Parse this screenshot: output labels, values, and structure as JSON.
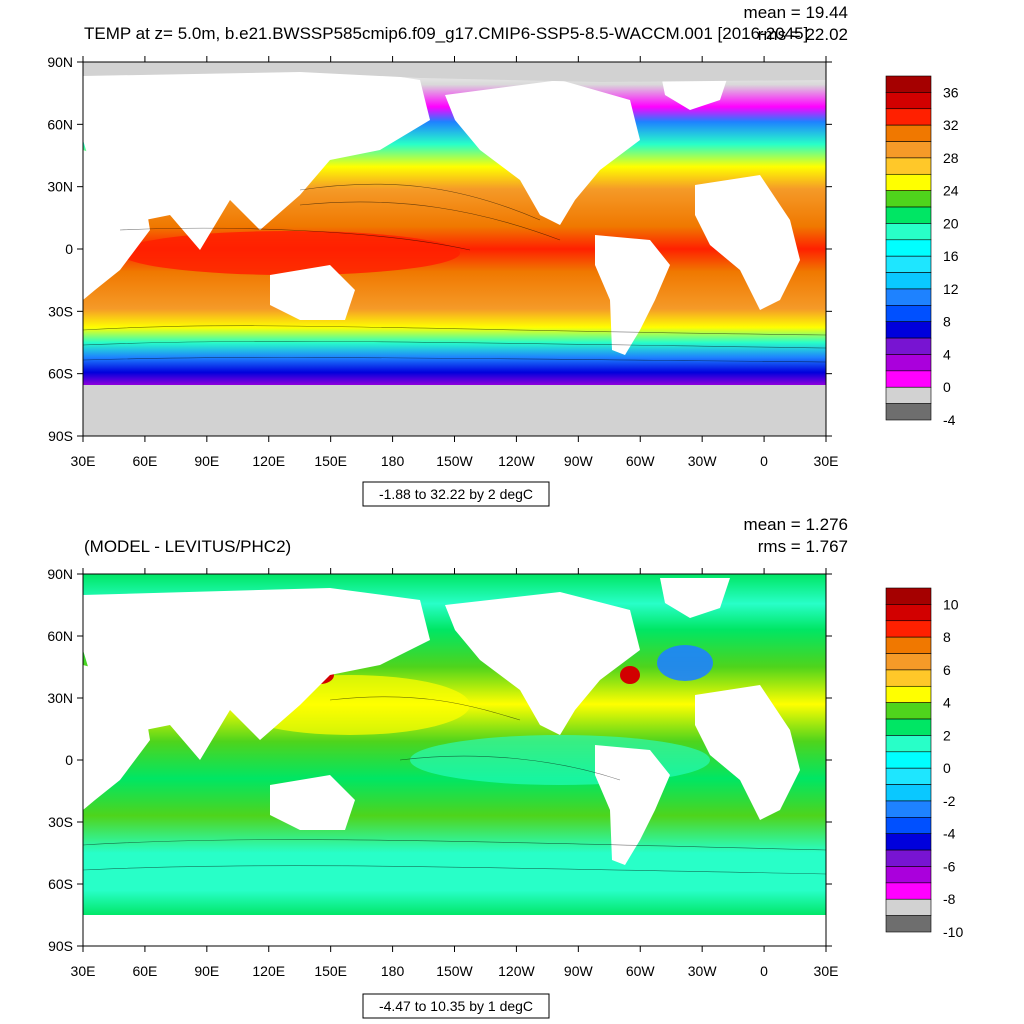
{
  "panels": [
    {
      "title": "TEMP at z=   5.0m, b.e21.BWSSP585cmip6.f09_g17.CMIP6-SSP5-8.5-WACCM.001 [2016-2045]",
      "stats": {
        "mean": "mean = 19.44",
        "rms": "rms = 22.02"
      },
      "range_label": "-1.88 to 32.22 by 2 degC",
      "colorbar": {
        "labels": [
          "36",
          "32",
          "28",
          "24",
          "20",
          "16",
          "12",
          "8",
          "4",
          "0",
          "-4"
        ],
        "colors": [
          "#a50000",
          "#d20000",
          "#ff2000",
          "#f07800",
          "#f59a28",
          "#ffc829",
          "#ffff00",
          "#4fd41c",
          "#00e664",
          "#28ffc8",
          "#00ffff",
          "#1ee6ff",
          "#0ac8ff",
          "#1e82ff",
          "#0050ff",
          "#0000dc",
          "#7814d2",
          "#aa00dc",
          "#ff00ff",
          "#d2d2d2",
          "#6e6e6e"
        ]
      }
    },
    {
      "title": "(MODEL - LEVITUS/PHC2)",
      "stats": {
        "mean": "mean = 1.276",
        "rms": "rms = 1.767"
      },
      "range_label": "-4.47 to 10.35 by 1 degC",
      "colorbar": {
        "labels": [
          "10",
          "8",
          "6",
          "4",
          "2",
          "0",
          "-2",
          "-4",
          "-6",
          "-8",
          "-10"
        ],
        "colors": [
          "#a50000",
          "#d20000",
          "#ff2000",
          "#f07800",
          "#f59a28",
          "#ffc829",
          "#ffff00",
          "#4fd41c",
          "#00e664",
          "#28ffc8",
          "#00ffff",
          "#1ee6ff",
          "#0ac8ff",
          "#1e82ff",
          "#0050ff",
          "#0000dc",
          "#7814d2",
          "#aa00dc",
          "#ff00ff",
          "#d2d2d2",
          "#6e6e6e"
        ]
      }
    }
  ],
  "axes": {
    "lat_labels": [
      "90N",
      "60N",
      "30N",
      "0",
      "30S",
      "60S",
      "90S"
    ],
    "lon_labels": [
      "30E",
      "60E",
      "90E",
      "120E",
      "150E",
      "180",
      "150W",
      "120W",
      "90W",
      "60W",
      "30W",
      "0",
      "30E"
    ]
  }
}
